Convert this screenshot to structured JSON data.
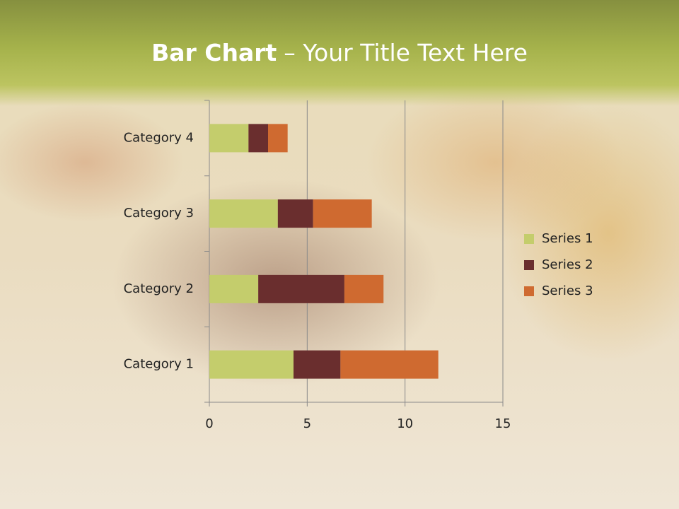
{
  "chart_data": {
    "type": "stacked_barh",
    "title": "Bar Chart",
    "title_suffix": "– Your Title Text Here",
    "categories": [
      "Category 1",
      "Category 2",
      "Category 3",
      "Category 4"
    ],
    "series": [
      {
        "name": "Series 1",
        "color": "#c4cd6c",
        "values": [
          4.3,
          2.5,
          3.5,
          2
        ]
      },
      {
        "name": "Series 2",
        "color": "#6a2e2e",
        "values": [
          2.4,
          4.4,
          1.8,
          1
        ]
      },
      {
        "name": "Series 3",
        "color": "#cf6a30",
        "values": [
          5,
          2,
          3,
          1
        ]
      }
    ],
    "xlim": [
      0,
      15
    ],
    "xticks": [
      0,
      5,
      10,
      15
    ],
    "grid": true,
    "legend": "right"
  }
}
